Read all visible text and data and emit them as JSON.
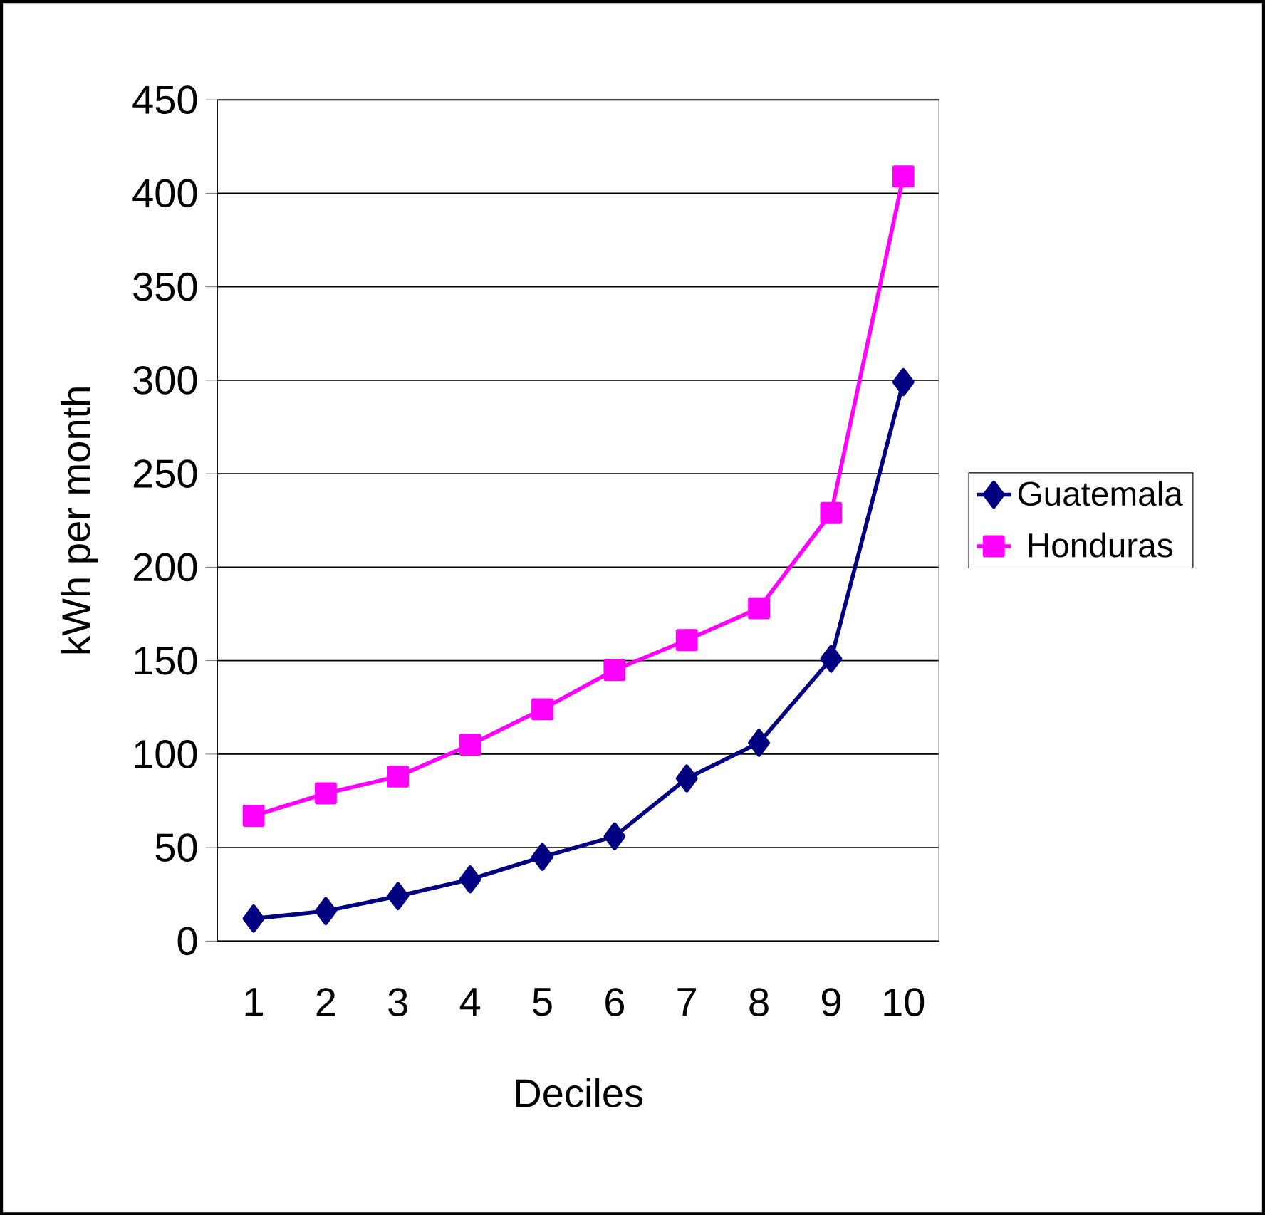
{
  "chart_data": {
    "type": "line",
    "xlabel": "Deciles",
    "ylabel": "kWh per month",
    "categories": [
      "1",
      "2",
      "3",
      "4",
      "5",
      "6",
      "7",
      "8",
      "9",
      "10"
    ],
    "series": [
      {
        "name": "Guatemala",
        "color": "#000080",
        "marker": "diamond",
        "values": [
          12,
          16,
          24,
          33,
          45,
          56,
          87,
          106,
          151,
          299
        ]
      },
      {
        "name": "Honduras",
        "color": "#ff00ff",
        "marker": "square",
        "values": [
          67,
          79,
          88,
          105,
          124,
          145,
          161,
          178,
          229,
          409
        ]
      }
    ],
    "ylim": [
      0,
      450
    ],
    "yticks": [
      0,
      50,
      100,
      150,
      200,
      250,
      300,
      350,
      400,
      450
    ],
    "grid": "y",
    "legend": "right"
  }
}
